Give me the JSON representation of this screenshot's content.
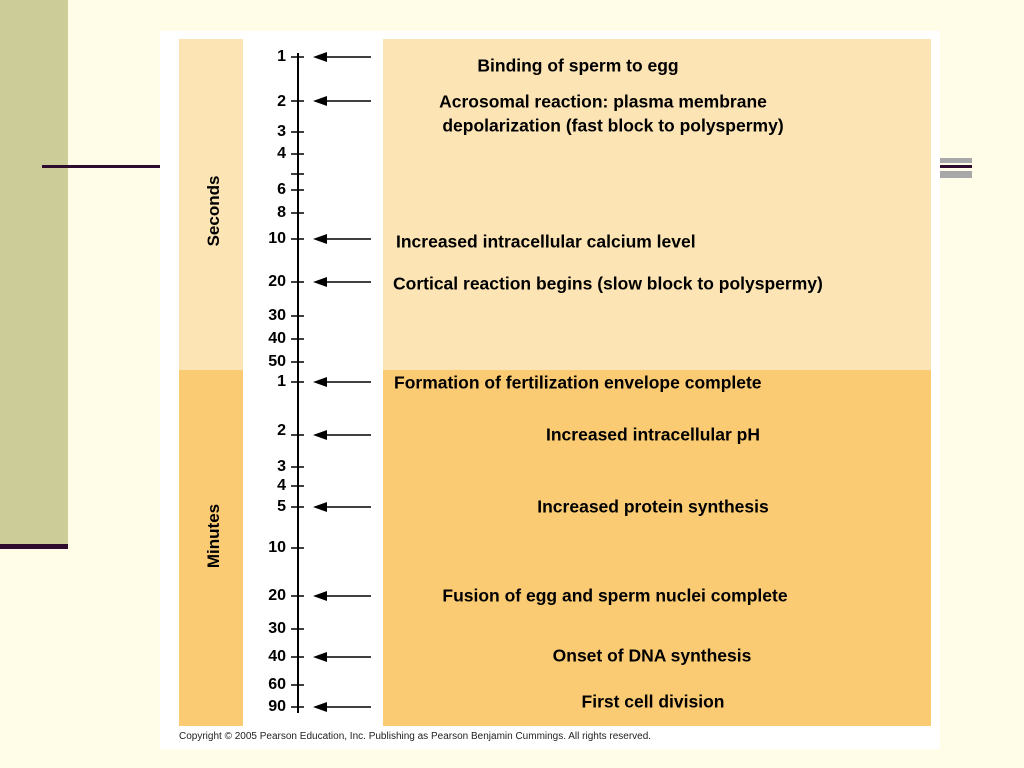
{
  "diagram": {
    "seconds_label": "Seconds",
    "minutes_label": "Minutes",
    "seconds_ticks": [
      {
        "label": "1",
        "value": 1
      },
      {
        "label": "2",
        "value": 2
      },
      {
        "label": "3",
        "value": 3
      },
      {
        "label": "4",
        "value": 4
      },
      {
        "label": "",
        "value": 5
      },
      {
        "label": "6",
        "value": 6
      },
      {
        "label": "8",
        "value": 8
      },
      {
        "label": "10",
        "value": 10
      },
      {
        "label": "20",
        "value": 20
      },
      {
        "label": "30",
        "value": 30
      },
      {
        "label": "40",
        "value": 40
      },
      {
        "label": "50",
        "value": 50
      }
    ],
    "minutes_ticks": [
      {
        "label": "1",
        "value": 1
      },
      {
        "label": "2",
        "value": 2
      },
      {
        "label": "3",
        "value": 3
      },
      {
        "label": "4",
        "value": 4
      },
      {
        "label": "5",
        "value": 5
      },
      {
        "label": "10",
        "value": 10
      },
      {
        "label": "20",
        "value": 20
      },
      {
        "label": "30",
        "value": 30
      },
      {
        "label": "40",
        "value": 40
      },
      {
        "label": "60",
        "value": 60
      },
      {
        "label": "90",
        "value": 90
      }
    ],
    "events": [
      {
        "unit": "seconds",
        "at": 1,
        "text": "Binding of sperm to egg"
      },
      {
        "unit": "seconds",
        "at": 2,
        "text": "Acrosomal reaction: plasma membrane"
      },
      {
        "unit": "seconds",
        "at": 2,
        "text": "depolarization (fast block to polyspermy)"
      },
      {
        "unit": "seconds",
        "at": 10,
        "text": "Increased intracellular calcium level"
      },
      {
        "unit": "seconds",
        "at": 20,
        "text": "Cortical reaction begins (slow block to polyspermy)"
      },
      {
        "unit": "minutes",
        "at": 1,
        "text": "Formation of fertilization envelope complete"
      },
      {
        "unit": "minutes",
        "at": 2,
        "text": "Increased intracellular pH"
      },
      {
        "unit": "minutes",
        "at": 5,
        "text": "Increased protein synthesis"
      },
      {
        "unit": "minutes",
        "at": 20,
        "text": "Fusion of egg and sperm nuclei complete"
      },
      {
        "unit": "minutes",
        "at": 40,
        "text": "Onset of DNA synthesis"
      },
      {
        "unit": "minutes",
        "at": 90,
        "text": "First cell division"
      }
    ],
    "copyright": "Copyright © 2005 Pearson Education, Inc. Publishing as Pearson Benjamin Cummings. All rights reserved."
  },
  "colors": {
    "page_background": "#FFFDE8",
    "side_bar": "#CCCC99",
    "accent_rule": "#2E0B2E",
    "seconds_band": "#FCE4B4",
    "minutes_band": "#FBCB74"
  }
}
